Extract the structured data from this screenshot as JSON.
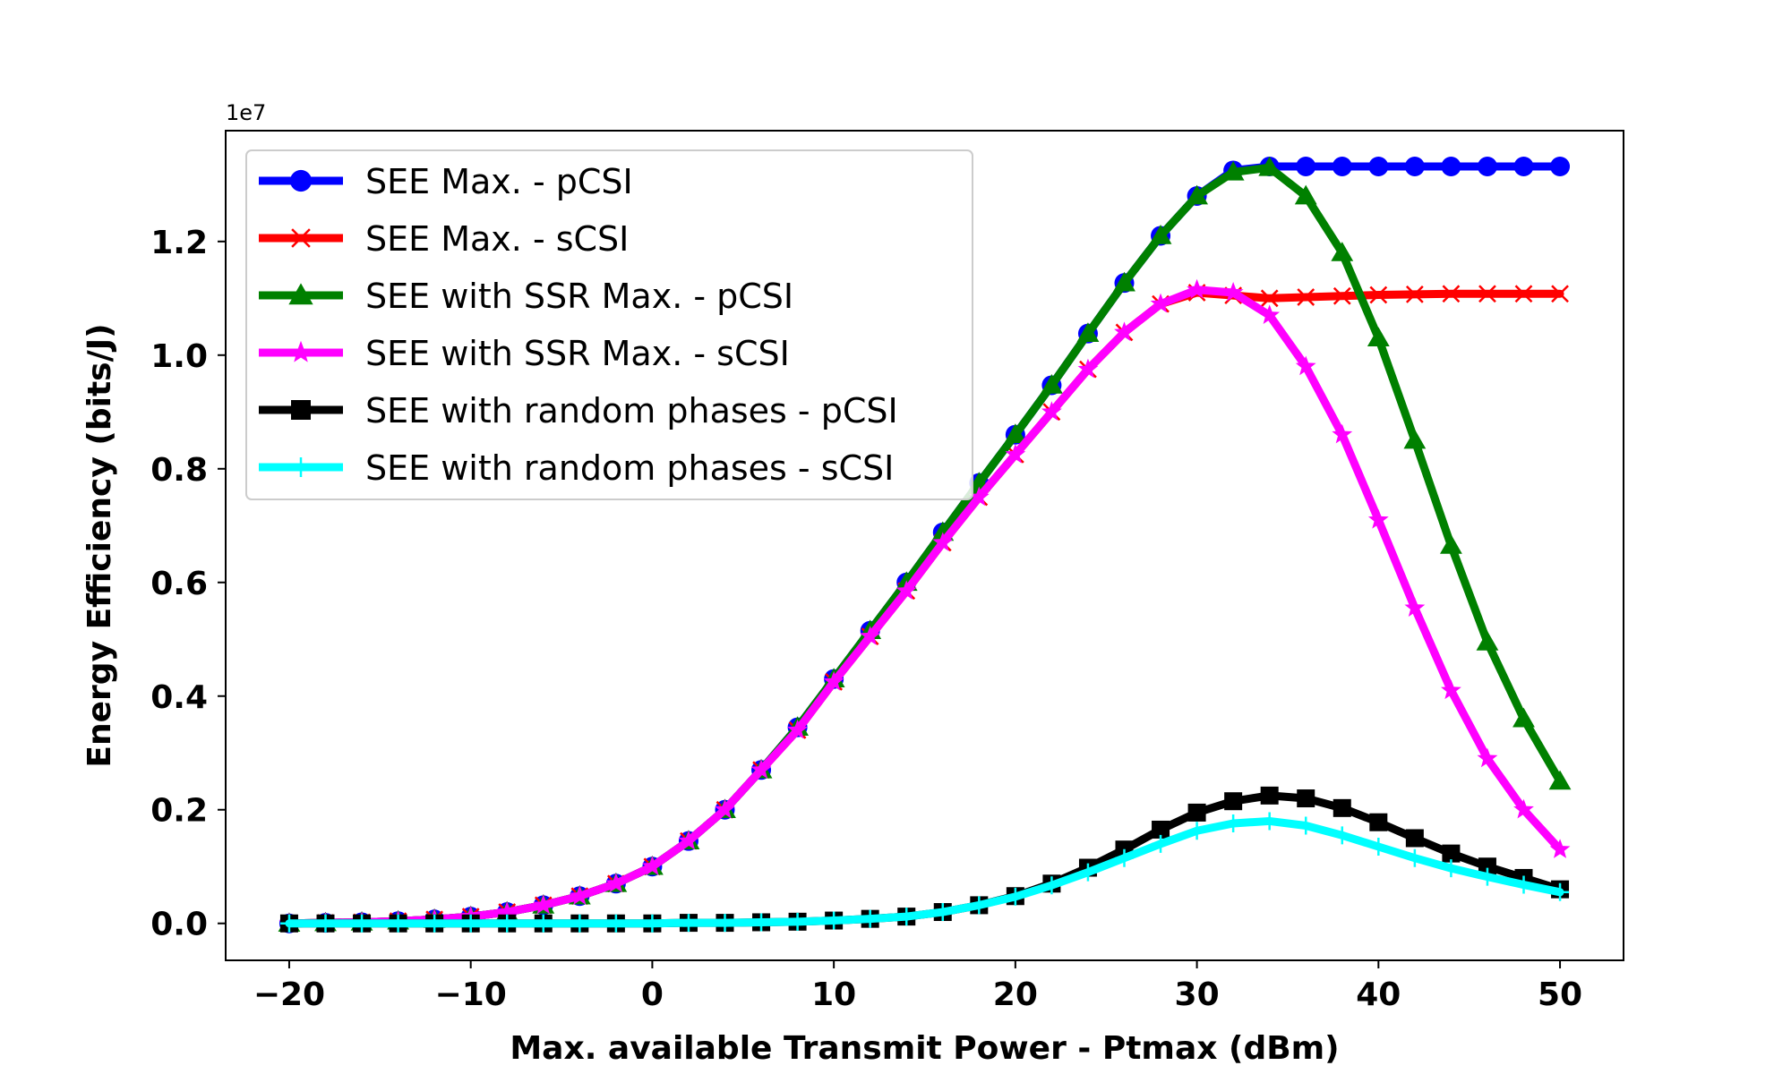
{
  "chart_data": {
    "type": "line",
    "xlabel": "Max. available Transmit Power - Ptmax (dBm)",
    "ylabel": "Energy Efficiency (bits/J)",
    "y_offset_label": "1e7",
    "x_unit_scale": 1,
    "y_unit_scale": 10000000,
    "xlim": [
      -23.5,
      53.5
    ],
    "ylim": [
      -0.065,
      1.395
    ],
    "x_ticks": [
      -20,
      -10,
      0,
      10,
      20,
      30,
      40,
      50
    ],
    "x_tick_labels": [
      "−20",
      "−10",
      "0",
      "10",
      "20",
      "30",
      "40",
      "50"
    ],
    "y_ticks": [
      0.0,
      0.2,
      0.4,
      0.6,
      0.8,
      1.0,
      1.2
    ],
    "y_tick_labels": [
      "0.0",
      "0.2",
      "0.4",
      "0.6",
      "0.8",
      "1.0",
      "1.2"
    ],
    "grid": false,
    "legend_position": "top-left",
    "x": [
      -20,
      -18,
      -16,
      -14,
      -12,
      -10,
      -8,
      -6,
      -4,
      -2,
      0,
      2,
      4,
      6,
      8,
      10,
      12,
      14,
      16,
      18,
      20,
      22,
      24,
      26,
      28,
      30,
      32,
      34,
      36,
      38,
      40,
      42,
      44,
      46,
      48,
      50
    ],
    "series": [
      {
        "name": "SEE Max. - pCSI",
        "color": "#0000ff",
        "marker": "circle",
        "values": [
          0.0,
          0.001,
          0.002,
          0.004,
          0.007,
          0.012,
          0.02,
          0.032,
          0.048,
          0.07,
          0.1,
          0.145,
          0.2,
          0.27,
          0.345,
          0.43,
          0.515,
          0.6,
          0.688,
          0.775,
          0.86,
          0.947,
          1.038,
          1.127,
          1.21,
          1.28,
          1.325,
          1.332,
          1.332,
          1.332,
          1.332,
          1.332,
          1.332,
          1.332,
          1.332,
          1.332
        ]
      },
      {
        "name": "SEE Max. - sCSI",
        "color": "#ff0000",
        "marker": "x",
        "values": [
          0.0,
          0.001,
          0.002,
          0.004,
          0.007,
          0.012,
          0.02,
          0.032,
          0.048,
          0.07,
          0.1,
          0.145,
          0.2,
          0.27,
          0.34,
          0.425,
          0.505,
          0.585,
          0.67,
          0.75,
          0.825,
          0.9,
          0.975,
          1.04,
          1.09,
          1.11,
          1.105,
          1.1,
          1.102,
          1.104,
          1.106,
          1.107,
          1.108,
          1.108,
          1.108,
          1.108
        ]
      },
      {
        "name": "SEE with SSR Max. - pCSI",
        "color": "#008000",
        "marker": "triangle",
        "values": [
          0.0,
          0.001,
          0.002,
          0.004,
          0.007,
          0.012,
          0.02,
          0.032,
          0.048,
          0.07,
          0.1,
          0.145,
          0.2,
          0.27,
          0.345,
          0.43,
          0.515,
          0.6,
          0.688,
          0.775,
          0.86,
          0.947,
          1.038,
          1.127,
          1.21,
          1.28,
          1.322,
          1.33,
          1.28,
          1.18,
          1.03,
          0.85,
          0.665,
          0.495,
          0.36,
          0.25
        ]
      },
      {
        "name": "SEE with SSR Max. - sCSI",
        "color": "#ff00ff",
        "marker": "star",
        "values": [
          0.0,
          0.001,
          0.002,
          0.004,
          0.007,
          0.012,
          0.02,
          0.032,
          0.048,
          0.07,
          0.1,
          0.145,
          0.2,
          0.27,
          0.34,
          0.425,
          0.505,
          0.585,
          0.67,
          0.75,
          0.825,
          0.9,
          0.975,
          1.04,
          1.09,
          1.115,
          1.11,
          1.07,
          0.98,
          0.86,
          0.71,
          0.555,
          0.41,
          0.29,
          0.2,
          0.13
        ]
      },
      {
        "name": "SEE with random phases - pCSI",
        "color": "#000000",
        "marker": "square",
        "values": [
          0.0,
          0.0,
          0.0,
          0.0,
          0.0,
          0.0,
          0.0,
          0.0,
          0.0,
          0.0,
          0.0,
          0.001,
          0.001,
          0.002,
          0.003,
          0.005,
          0.008,
          0.012,
          0.02,
          0.032,
          0.048,
          0.07,
          0.098,
          0.13,
          0.165,
          0.195,
          0.215,
          0.225,
          0.22,
          0.203,
          0.178,
          0.15,
          0.123,
          0.1,
          0.08,
          0.06
        ]
      },
      {
        "name": "SEE with random phases - sCSI",
        "color": "#00ffff",
        "marker": "plus",
        "values": [
          0.0,
          0.0,
          0.0,
          0.0,
          0.0,
          0.0,
          0.0,
          0.0,
          0.0,
          0.0,
          0.0,
          0.001,
          0.001,
          0.002,
          0.003,
          0.005,
          0.008,
          0.012,
          0.02,
          0.032,
          0.047,
          0.067,
          0.09,
          0.115,
          0.14,
          0.163,
          0.176,
          0.18,
          0.172,
          0.155,
          0.135,
          0.115,
          0.097,
          0.082,
          0.068,
          0.055
        ]
      }
    ]
  }
}
